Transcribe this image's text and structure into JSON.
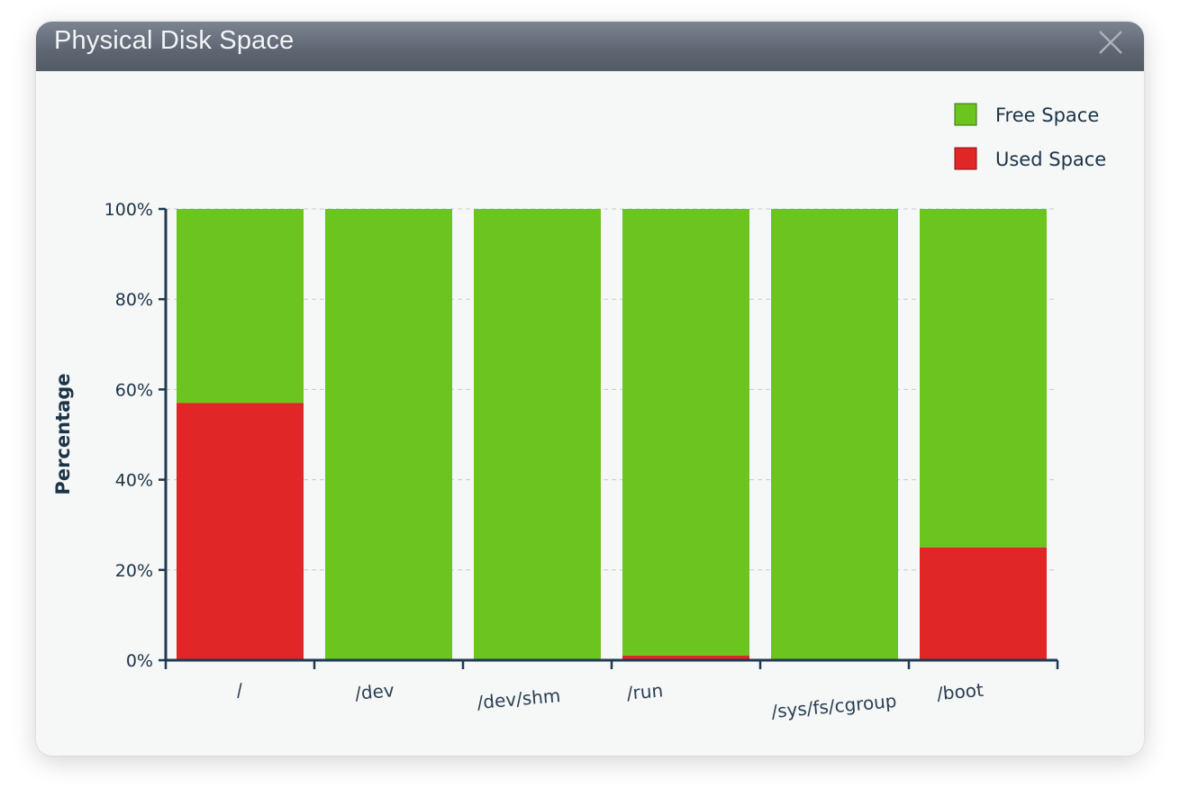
{
  "window": {
    "title": "Physical Disk Space",
    "close_icon": "close-icon"
  },
  "colors": {
    "free": "#6cc51e",
    "used": "#e02626",
    "axis": "#1f3a52",
    "grid": "#c8ccd0"
  },
  "chart_data": {
    "type": "bar",
    "stacked": true,
    "categories": [
      "/",
      "/dev",
      "/dev/shm",
      "/run",
      "/sys/fs/cgroup",
      "/boot"
    ],
    "series": [
      {
        "name": "Used Space",
        "values": [
          57,
          0,
          0,
          1,
          0,
          25
        ]
      },
      {
        "name": "Free Space",
        "values": [
          43,
          100,
          100,
          99,
          100,
          75
        ]
      }
    ],
    "ylabel": "Percentage",
    "yticks": [
      "0%",
      "20%",
      "40%",
      "60%",
      "80%",
      "100%"
    ],
    "ylim": [
      0,
      100
    ],
    "grid": true,
    "legend": {
      "position": "top-right",
      "entries": [
        "Free Space",
        "Used Space"
      ]
    }
  }
}
